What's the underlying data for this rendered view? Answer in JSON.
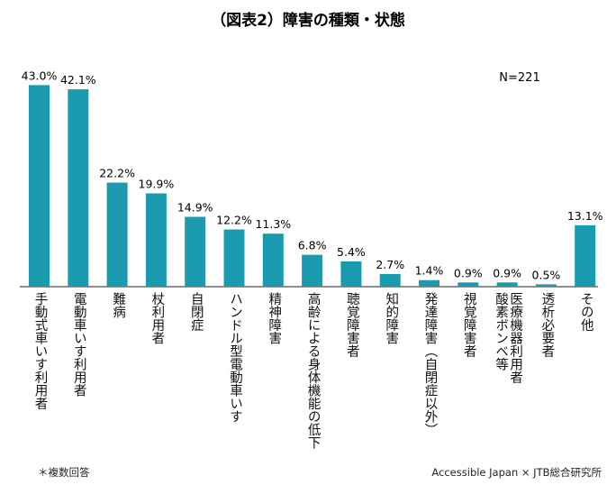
{
  "chart_data": {
    "type": "bar",
    "title": "（図表2）障害の種類・状態",
    "sample_note": "N=221",
    "categories": [
      "手動式車いす利用者",
      "電動車いす利用者",
      "難病",
      "杖利用者",
      "自閉症",
      "ハンドル型電動車いす",
      "精神障害",
      "高齢による身体機能の低下",
      "聴覚障害者",
      "知的障害",
      "発達障害（自閉症以外）",
      "視覚障害者",
      "酸素ボンベ等医療機器利用者",
      "透析必要者",
      "その他"
    ],
    "values": [
      43.0,
      42.1,
      22.2,
      19.9,
      14.9,
      12.2,
      11.3,
      6.8,
      5.4,
      2.7,
      1.4,
      0.9,
      0.9,
      0.5,
      13.1
    ],
    "value_labels": [
      "43.0%",
      "42.1%",
      "22.2%",
      "19.9%",
      "14.9%",
      "12.2%",
      "11.3%",
      "6.8%",
      "5.4%",
      "2.7%",
      "1.4%",
      "0.9%",
      "0.9%",
      "0.5%",
      "13.1%"
    ],
    "label_lines": [
      [
        "手動式車いす利用者"
      ],
      [
        "電動車いす利用者"
      ],
      [
        "難病"
      ],
      [
        "杖利用者"
      ],
      [
        "自閉症"
      ],
      [
        "ハンドル型電動車いす"
      ],
      [
        "精神障害"
      ],
      [
        "高齢による身体機能の低下"
      ],
      [
        "聴覚障害者"
      ],
      [
        "知的障害"
      ],
      [
        "発達障害（自閉症以外）"
      ],
      [
        "視覚障害者"
      ],
      [
        "医療機器利用者",
        "酸素ボンベ等"
      ],
      [
        "透析必要者"
      ],
      [
        "その他"
      ]
    ],
    "ylim": [
      0,
      45
    ],
    "xlabel": "",
    "ylabel": "",
    "bar_color": "#1a9bb0"
  },
  "footnote": "＊複数回答",
  "source": "Accessible Japan × JTB総合研究所"
}
